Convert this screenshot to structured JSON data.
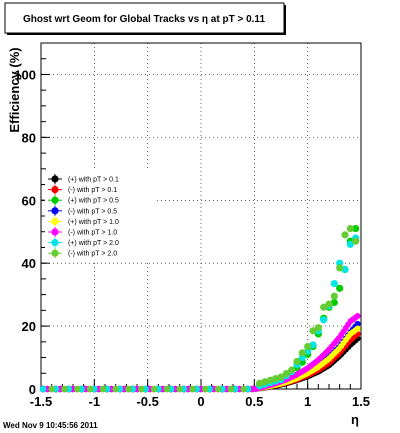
{
  "chart_data": {
    "type": "scatter",
    "title": "Ghost wrt Geom for Global Tracks vs   η at pT > 0.11",
    "xlabel": "η",
    "ylabel": "Efficiency (%)",
    "xlim": [
      -1.5,
      1.5
    ],
    "ylim": [
      0,
      110
    ],
    "xticks": [
      -1.5,
      -1,
      -0.5,
      0,
      0.5,
      1,
      1.5
    ],
    "xtick_labels": [
      "-1.5",
      "-1",
      "-0.5",
      "0",
      "0.5",
      "1",
      "1.5"
    ],
    "yticks": [
      0,
      20,
      40,
      60,
      80,
      100
    ],
    "ytick_labels": [
      "0",
      "20",
      "40",
      "60",
      "80",
      "100"
    ],
    "grid": true,
    "legend_position": "left",
    "timestamp": "Wed Nov  9 10:45:56 2011",
    "eta_bins": [
      -1.45,
      -1.35,
      -1.25,
      -1.15,
      -1.05,
      -0.95,
      -0.85,
      -0.75,
      -0.65,
      -0.55,
      -0.45,
      -0.35,
      -0.25,
      -0.15,
      -0.05,
      0.05,
      0.15,
      0.25,
      0.35,
      0.45,
      0.55,
      0.65,
      0.75,
      0.85,
      0.95,
      1.05,
      1.15,
      1.25,
      1.35,
      1.45
    ],
    "series": [
      {
        "name": "(+) with pT > 0.1",
        "color": "#000000",
        "eta_min": 0.5,
        "eta_max": 1.5,
        "values_at_eta": [
          [
            0.5,
            0
          ],
          [
            0.6,
            0.4
          ],
          [
            0.7,
            1.0
          ],
          [
            0.8,
            1.8
          ],
          [
            0.9,
            2.8
          ],
          [
            1.0,
            4.0
          ],
          [
            1.1,
            5.5
          ],
          [
            1.2,
            7.5
          ],
          [
            1.3,
            10.5
          ],
          [
            1.4,
            14.0
          ],
          [
            1.5,
            17.0
          ]
        ]
      },
      {
        "name": "(-) with pT > 0.1",
        "color": "#ff0000",
        "eta_min": 0.5,
        "eta_max": 1.5,
        "values_at_eta": [
          [
            0.5,
            0
          ],
          [
            0.6,
            0.5
          ],
          [
            0.7,
            1.2
          ],
          [
            0.8,
            2.0
          ],
          [
            0.9,
            3.0
          ],
          [
            1.0,
            4.4
          ],
          [
            1.1,
            6.0
          ],
          [
            1.2,
            8.3
          ],
          [
            1.3,
            11.5
          ],
          [
            1.4,
            15.5
          ],
          [
            1.5,
            18.5
          ]
        ]
      },
      {
        "name": "(+) with pT > 0.5",
        "color": "#00cc00",
        "eta_min": 0.5,
        "eta_max": 1.5,
        "values_at_eta": [
          [
            0.55,
            1.5
          ],
          [
            0.65,
            2.5
          ],
          [
            0.75,
            3.5
          ],
          [
            0.85,
            5.0
          ],
          [
            0.95,
            8.5
          ],
          [
            1.05,
            13.5
          ],
          [
            1.1,
            17.5
          ],
          [
            1.15,
            22.5
          ],
          [
            1.2,
            26.0
          ],
          [
            1.25,
            27.5
          ],
          [
            1.3,
            32.0
          ],
          [
            1.35,
            38.0
          ],
          [
            1.4,
            47.0
          ],
          [
            1.45,
            51.0
          ],
          [
            1.5,
            47.0
          ]
        ]
      },
      {
        "name": "(-) with pT > 0.5",
        "color": "#0000ff",
        "eta_min": 0.5,
        "eta_max": 1.5,
        "values_at_eta": [
          [
            0.5,
            0
          ],
          [
            0.6,
            0.6
          ],
          [
            0.7,
            1.4
          ],
          [
            0.8,
            2.3
          ],
          [
            0.9,
            3.6
          ],
          [
            1.0,
            5.2
          ],
          [
            1.1,
            7.2
          ],
          [
            1.2,
            10.0
          ],
          [
            1.3,
            13.5
          ],
          [
            1.4,
            18.0
          ],
          [
            1.5,
            22.0
          ]
        ]
      },
      {
        "name": "(+) with pT > 1.0",
        "color": "#ffff00",
        "eta_min": 0.5,
        "eta_max": 1.5,
        "values_at_eta": [
          [
            0.5,
            0
          ],
          [
            0.6,
            0.6
          ],
          [
            0.7,
            1.3
          ],
          [
            0.8,
            2.2
          ],
          [
            0.9,
            3.4
          ],
          [
            1.0,
            5.0
          ],
          [
            1.1,
            7.0
          ],
          [
            1.2,
            9.6
          ],
          [
            1.3,
            13.0
          ],
          [
            1.4,
            17.5
          ],
          [
            1.5,
            20.0
          ]
        ]
      },
      {
        "name": "(-) with pT > 1.0",
        "color": "#ff00ff",
        "eta_min": 0.5,
        "eta_max": 1.5,
        "values_at_eta": [
          [
            0.5,
            0
          ],
          [
            0.6,
            0.8
          ],
          [
            0.7,
            1.8
          ],
          [
            0.8,
            3.0
          ],
          [
            0.9,
            4.6
          ],
          [
            1.0,
            6.6
          ],
          [
            1.1,
            9.2
          ],
          [
            1.2,
            12.5
          ],
          [
            1.3,
            16.5
          ],
          [
            1.4,
            21.5
          ],
          [
            1.5,
            24.0
          ]
        ]
      },
      {
        "name": "(+) with pT > 2.0",
        "color": "#00e5e5",
        "eta_min": 0.5,
        "eta_max": 1.5,
        "values_at_eta": [
          [
            0.55,
            1.0
          ],
          [
            0.65,
            2.0
          ],
          [
            0.75,
            3.0
          ],
          [
            0.85,
            5.5
          ],
          [
            0.95,
            10.0
          ],
          [
            1.05,
            14.0
          ],
          [
            1.1,
            18.5
          ],
          [
            1.15,
            22.0
          ],
          [
            1.2,
            26.5
          ],
          [
            1.25,
            33.5
          ],
          [
            1.3,
            40.0
          ],
          [
            1.35,
            38.0
          ],
          [
            1.4,
            46.0
          ],
          [
            1.45,
            48.0
          ],
          [
            1.5,
            47.0
          ]
        ]
      },
      {
        "name": "(-) with pT > 2.0",
        "color": "#66cc33",
        "eta_min": 0.5,
        "eta_max": 1.5,
        "values_at_eta": [
          [
            0.55,
            1.8
          ],
          [
            0.65,
            2.8
          ],
          [
            0.75,
            3.8
          ],
          [
            0.85,
            6.0
          ],
          [
            0.95,
            11.5
          ],
          [
            1.0,
            13.5
          ],
          [
            1.05,
            18.5
          ],
          [
            1.1,
            19.5
          ],
          [
            1.15,
            26.0
          ],
          [
            1.2,
            27.0
          ],
          [
            1.25,
            29.5
          ],
          [
            1.3,
            38.5
          ],
          [
            1.35,
            49.0
          ],
          [
            1.4,
            51.0
          ],
          [
            1.45,
            47.0
          ],
          [
            1.5,
            46.0
          ]
        ]
      }
    ]
  }
}
